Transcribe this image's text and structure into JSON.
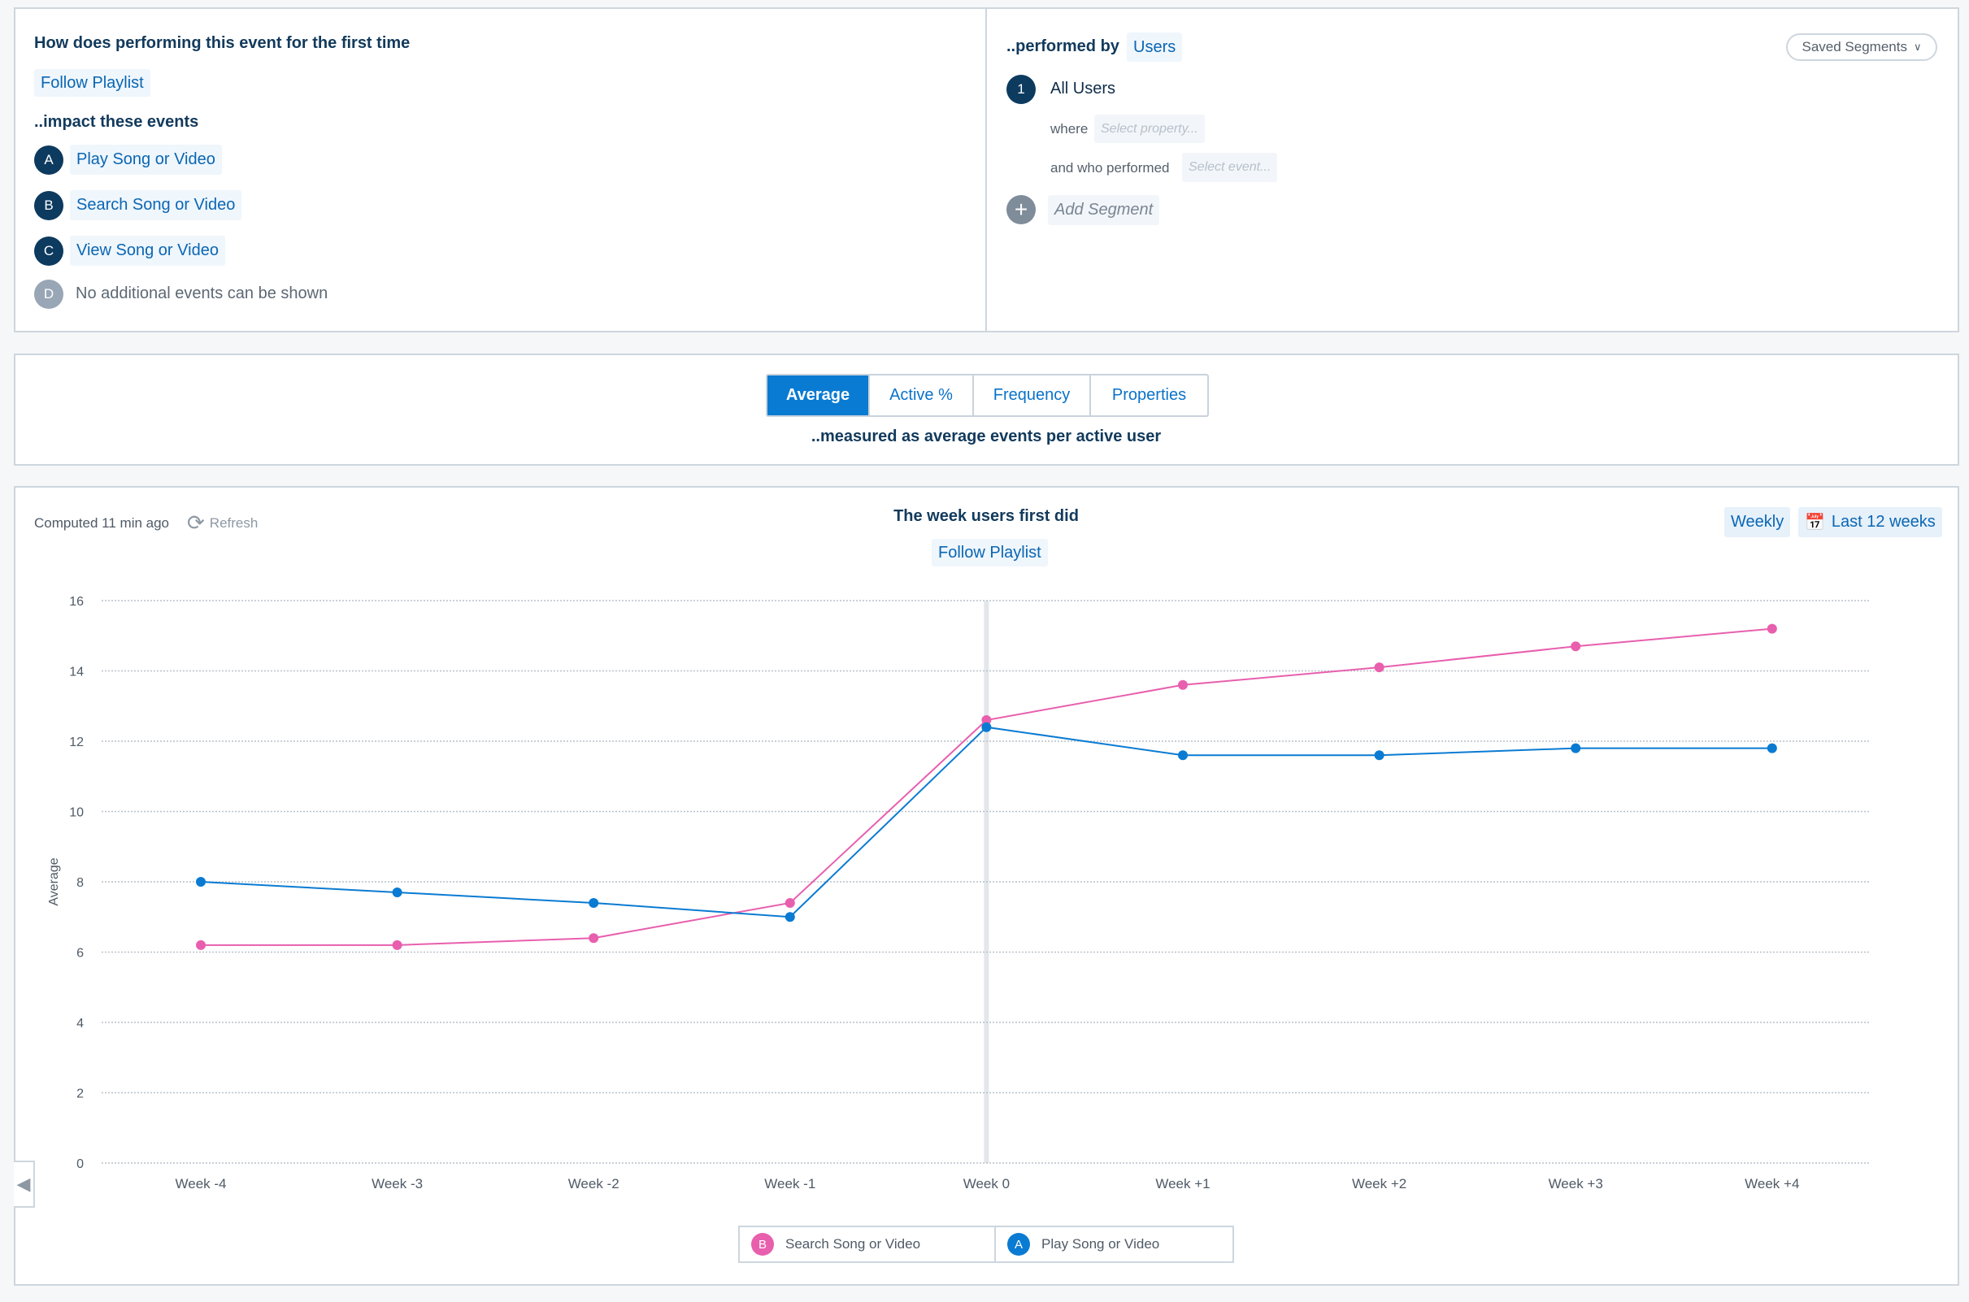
{
  "query": {
    "question": "How does performing this event for the first time",
    "first_event": "Follow Playlist",
    "impact_label": "..impact these events",
    "events": [
      {
        "letter": "A",
        "name": "Play Song or Video"
      },
      {
        "letter": "B",
        "name": "Search Song or Video"
      },
      {
        "letter": "C",
        "name": "View Song or Video"
      },
      {
        "letter": "D",
        "name": "No additional events can be shown"
      }
    ]
  },
  "segments": {
    "performed_by_label": "..performed by",
    "performed_by_value": "Users",
    "saved_segments": "Saved Segments",
    "segment_number": "1",
    "segment_name": "All Users",
    "where_label": "where",
    "where_placeholder": "Select property...",
    "who_performed_label": "and who performed",
    "who_performed_placeholder": "Select event...",
    "add_segment": "Add Segment"
  },
  "metric": {
    "tabs": [
      "Average",
      "Active %",
      "Frequency",
      "Properties"
    ],
    "active_tab": "Average",
    "description": "..measured as average events per active user"
  },
  "results": {
    "computed": "Computed 11 min ago",
    "refresh": "Refresh",
    "title": "The week users first did",
    "title_event": "Follow Playlist",
    "interval": "Weekly",
    "range": "Last 12 weeks"
  },
  "chart_data": {
    "type": "line",
    "xlabel": "",
    "ylabel": "Average",
    "ylim": [
      0,
      16
    ],
    "yticks": [
      "0",
      "2",
      "4",
      "6",
      "8",
      "10",
      "12",
      "14",
      "16"
    ],
    "grid": true,
    "highlight_category": "Week 0",
    "legend_position": "bottom",
    "categories": [
      "Week -4",
      "Week -3",
      "Week -2",
      "Week -1",
      "Week 0",
      "Week +1",
      "Week +2",
      "Week +3",
      "Week +4"
    ],
    "series": [
      {
        "name": "Search Song or Video",
        "letter": "B",
        "color": "#e85fae",
        "values": [
          6.2,
          6.2,
          6.4,
          7.4,
          12.6,
          13.6,
          14.1,
          14.7,
          15.2
        ]
      },
      {
        "name": "Play Song or Video",
        "letter": "A",
        "color": "#0a7bd2",
        "values": [
          8.0,
          7.7,
          7.4,
          7.0,
          12.4,
          11.6,
          11.6,
          11.8,
          11.8
        ]
      }
    ]
  }
}
